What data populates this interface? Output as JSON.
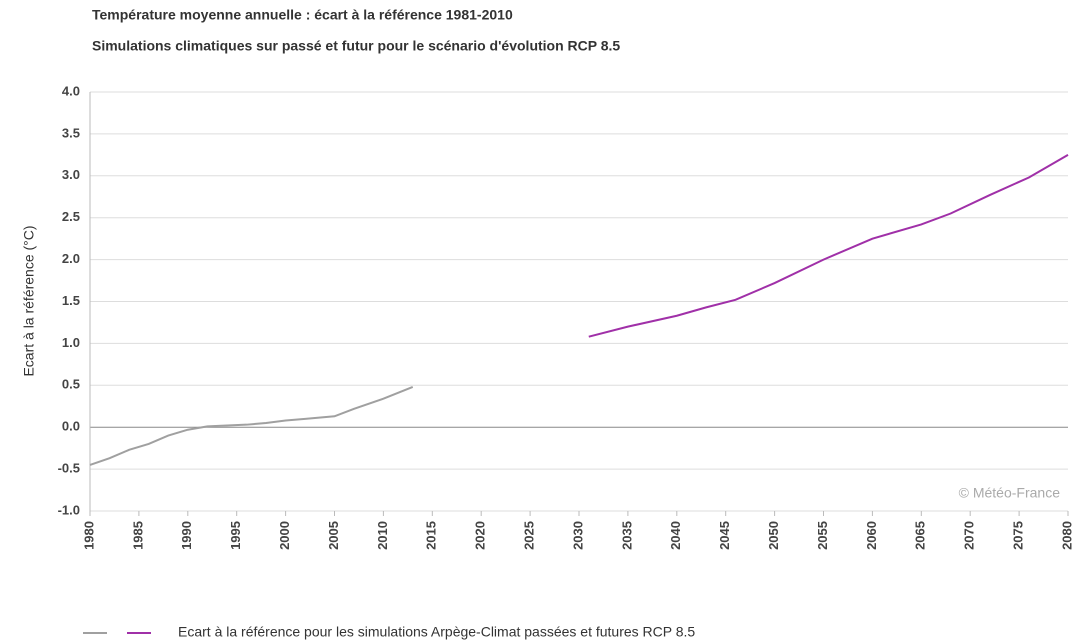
{
  "chart_data": {
    "type": "line",
    "title": "Température moyenne annuelle : écart à la référence 1981-2010",
    "subtitle": "Simulations climatiques sur passé et futur pour le scénario d'évolution RCP 8.5",
    "y_label": "Ecart à la référence (°C)",
    "annotation": "© Météo-France",
    "series": [
      {
        "name": "Ecart à la référence pour les simulations  Arpège-Climat  passées et futures  RCP 8.5",
        "color": "#a0a0a0",
        "x": [
          1980,
          1982,
          1984,
          1986,
          1988,
          1990,
          1992,
          1994,
          1996,
          1998,
          2000,
          2002,
          2005,
          2007,
          2010,
          2013
        ],
        "values": [
          -0.45,
          -0.37,
          -0.27,
          -0.2,
          -0.1,
          -0.03,
          0.01,
          0.02,
          0.03,
          0.05,
          0.08,
          0.1,
          0.13,
          0.22,
          0.34,
          0.48
        ]
      },
      {
        "color": "#a030a8",
        "x": [
          2031,
          2035,
          2040,
          2043,
          2046,
          2050,
          2055,
          2060,
          2065,
          2068,
          2072,
          2076,
          2080
        ],
        "values": [
          1.08,
          1.2,
          1.33,
          1.43,
          1.52,
          1.72,
          2.0,
          2.25,
          2.42,
          2.55,
          2.77,
          2.98,
          3.25
        ]
      }
    ],
    "xlim": [
      1980,
      2080
    ],
    "xticks": [
      1980,
      1985,
      1990,
      1995,
      2000,
      2005,
      2010,
      2015,
      2020,
      2025,
      2030,
      2035,
      2040,
      2045,
      2050,
      2055,
      2060,
      2065,
      2070,
      2075,
      2080
    ],
    "ylim": [
      -1,
      4
    ],
    "yticks": [
      {
        "value": -1,
        "label": "-1.0"
      },
      {
        "value": -0.5,
        "label": "-0.5"
      },
      {
        "value": 0,
        "label": "0.0"
      },
      {
        "value": 0.5,
        "label": "0.5"
      },
      {
        "value": 1,
        "label": "1.0"
      },
      {
        "value": 1.5,
        "label": "1.5"
      },
      {
        "value": 2,
        "label": "2.0"
      },
      {
        "value": 2.5,
        "label": "2.5"
      },
      {
        "value": 3,
        "label": "3.0"
      },
      {
        "value": 3.5,
        "label": "3.5"
      },
      {
        "value": 4,
        "label": "4.0"
      }
    ],
    "grid": true
  }
}
